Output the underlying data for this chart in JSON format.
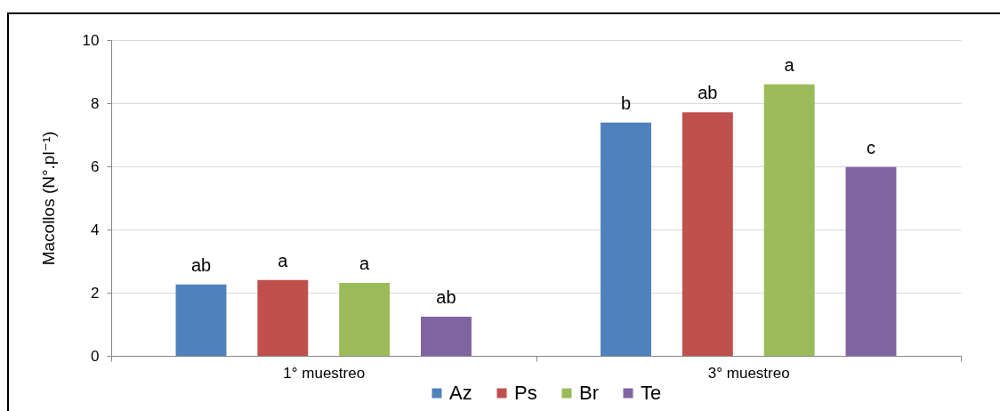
{
  "chart_data": {
    "type": "bar",
    "categories": [
      "1° muestreo",
      "3° muestreo"
    ],
    "ylabel": "Macollos (N°.pl⁻¹)",
    "ylim": [
      0,
      10
    ],
    "yticks": [
      0,
      2,
      4,
      6,
      8,
      10
    ],
    "grid": "y",
    "legend": "bottom",
    "series": [
      {
        "name": "Az",
        "color": "#4f81bd",
        "values": [
          2.26,
          7.39
        ],
        "value_labels": [
          "ab",
          "b"
        ]
      },
      {
        "name": "Ps",
        "color": "#c0504d",
        "values": [
          2.4,
          7.71
        ],
        "value_labels": [
          "a",
          "ab"
        ]
      },
      {
        "name": "Br",
        "color": "#9bbb59",
        "values": [
          2.31,
          8.6
        ],
        "value_labels": [
          "a",
          "a"
        ]
      },
      {
        "name": "Te",
        "color": "#8064a2",
        "values": [
          1.24,
          5.98
        ],
        "value_labels": [
          "ab",
          "c"
        ]
      }
    ]
  }
}
